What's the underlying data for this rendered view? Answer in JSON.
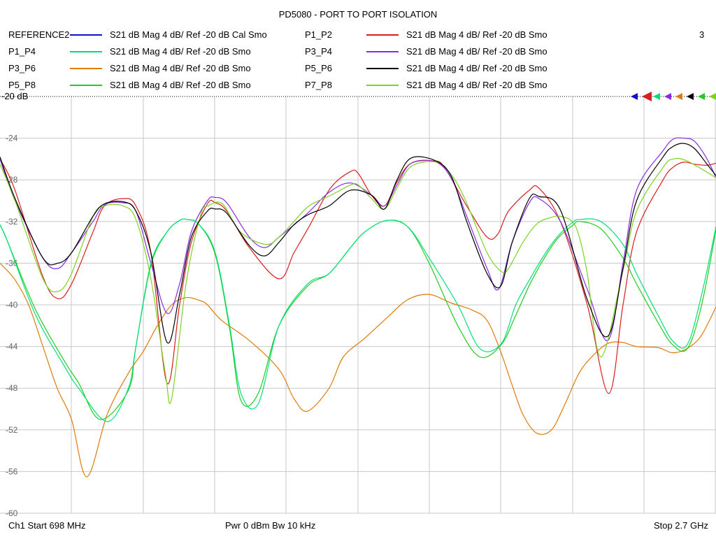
{
  "chart_data": {
    "type": "line",
    "title": "PD5080 - PORT TO PORT ISOLATION",
    "x_start_label": "698 MHz",
    "x_stop_label": "2.7 GHz",
    "xlim": [
      698,
      2700
    ],
    "ylim": [
      -60,
      -20
    ],
    "y_ticks": [
      -24,
      -28,
      -32,
      -36,
      -40,
      -44,
      -48,
      -52,
      -56,
      -60
    ],
    "reference_label": "-20 dB",
    "grid": true,
    "legend_position": "top",
    "series": [
      {
        "name": "REFERENCE2",
        "description": "S21  dB Mag  4 dB/ Ref -20 dB  Cal Smo",
        "color": "#1010c8",
        "x": [],
        "y": []
      },
      {
        "name": "P1_P2",
        "description": "S21  dB Mag  4 dB/ Ref -20 dB  Smo",
        "color": "#d81e1e",
        "x": [
          698,
          740,
          818,
          860,
          898,
          958,
          990,
          1042,
          1078,
          1120,
          1165,
          1200,
          1233,
          1278,
          1300,
          1332,
          1395,
          1478,
          1520,
          1562,
          1622,
          1678,
          1700,
          1737,
          1773,
          1808,
          1848,
          1918,
          1940,
          1962,
          2003,
          2060,
          2090,
          2120,
          2178,
          2205,
          2265,
          2340,
          2400,
          2440,
          2478,
          2552,
          2580,
          2610,
          2640,
          2675,
          2700
        ],
        "y": [
          -26,
          -29,
          -37.3,
          -39.4,
          -38,
          -33,
          -30.5,
          -29.8,
          -30.5,
          -35,
          -47.5,
          -40,
          -34,
          -30.3,
          -30.2,
          -31,
          -34.5,
          -37.5,
          -35,
          -32.5,
          -28.8,
          -27.2,
          -27.4,
          -29.5,
          -30.5,
          -28.2,
          -26.4,
          -26.2,
          -26.8,
          -28,
          -30.5,
          -33.5,
          -33.2,
          -31,
          -29,
          -28.8,
          -32,
          -40,
          -48.5,
          -40,
          -33,
          -28,
          -26.8,
          -26.3,
          -26.5,
          -26.6,
          -26.4
        ]
      },
      {
        "name": "P1_P4",
        "description": "S21  dB Mag  4 dB/ Ref -20 dB  Smo",
        "color": "#00e07a",
        "x": [
          698,
          720,
          798,
          880,
          918,
          998,
          1057,
          1078,
          1120,
          1165,
          1200,
          1220,
          1255,
          1300,
          1340,
          1372,
          1420,
          1478,
          1558,
          1618,
          1678,
          1718,
          1778,
          1838,
          1898,
          1978,
          2040,
          2100,
          2140,
          2180,
          2220,
          2258,
          2298,
          2320,
          2378,
          2440,
          2478,
          2538,
          2580,
          2620,
          2660,
          2700
        ],
        "y": [
          -32.3,
          -34,
          -41,
          -46,
          -48,
          -51.2,
          -48,
          -44,
          -36,
          -33,
          -31.9,
          -31.8,
          -32.3,
          -35,
          -42,
          -48.5,
          -49.5,
          -42,
          -38,
          -37,
          -34.5,
          -33,
          -31.9,
          -32.5,
          -35.5,
          -40,
          -44.2,
          -43.7,
          -40,
          -37.5,
          -35.2,
          -33.4,
          -32.1,
          -31.8,
          -32,
          -34.2,
          -37,
          -41,
          -43.5,
          -43.8,
          -39,
          -32.5
        ]
      },
      {
        "name": "P3_P4",
        "description": "S21  dB Mag  4 dB/ Ref -20 dB  Smo",
        "color": "#8a2be2",
        "x": [
          698,
          740,
          818,
          860,
          898,
          958,
          990,
          1042,
          1078,
          1120,
          1165,
          1200,
          1233,
          1278,
          1300,
          1332,
          1395,
          1438,
          1478,
          1558,
          1618,
          1678,
          1738,
          1773,
          1808,
          1848,
          1918,
          1962,
          2003,
          2060,
          2092,
          2130,
          2178,
          2205,
          2265,
          2340,
          2398,
          2440,
          2478,
          2552,
          2580,
          2610,
          2640,
          2675,
          2700
        ],
        "y": [
          -26,
          -30,
          -35.5,
          -36.5,
          -35,
          -32,
          -30.4,
          -30.2,
          -31,
          -36,
          -40.8,
          -38,
          -33,
          -30,
          -29.7,
          -30.2,
          -33.5,
          -34.5,
          -33.5,
          -31.2,
          -29.2,
          -28.3,
          -29.5,
          -30.5,
          -28.5,
          -26.4,
          -26.3,
          -28,
          -31.5,
          -36.5,
          -38.5,
          -34,
          -30.2,
          -29.8,
          -32,
          -38.5,
          -43.4,
          -36,
          -29,
          -25.2,
          -24.1,
          -24,
          -24.3,
          -26,
          -27.8
        ]
      },
      {
        "name": "P3_P6",
        "description": "S21  dB Mag  4 dB/ Ref -20 dB  Smo",
        "color": "#e07b0a",
        "x": [
          698,
          738,
          778,
          818,
          858,
          898,
          941,
          998,
          1058,
          1098,
          1138,
          1178,
          1218,
          1258,
          1278,
          1318,
          1398,
          1478,
          1520,
          1558,
          1618,
          1658,
          1718,
          1778,
          1838,
          1898,
          1958,
          2018,
          2060,
          2098,
          2128,
          2160,
          2198,
          2240,
          2278,
          2318,
          2358,
          2398,
          2438,
          2478,
          2538,
          2578,
          2618,
          2658,
          2700
        ],
        "y": [
          -36,
          -37.5,
          -40,
          -44,
          -48,
          -51,
          -56.5,
          -50.5,
          -46.5,
          -44.5,
          -42,
          -40,
          -39.3,
          -39.6,
          -40,
          -41.5,
          -43.5,
          -46.2,
          -49,
          -50.2,
          -48,
          -45,
          -43.2,
          -41.3,
          -39.5,
          -39,
          -39.8,
          -40.5,
          -41.5,
          -44.5,
          -47.5,
          -50.5,
          -52.3,
          -52,
          -49.5,
          -46.5,
          -44.8,
          -43.7,
          -43.6,
          -44,
          -44.1,
          -44.6,
          -44.2,
          -43,
          -40.2
        ]
      },
      {
        "name": "P5_P6",
        "description": "S21  dB Mag  4 dB/ Ref -20 dB  Smo",
        "color": "#000000",
        "x": [
          698,
          740,
          818,
          860,
          898,
          958,
          990,
          1042,
          1078,
          1120,
          1165,
          1200,
          1233,
          1278,
          1300,
          1332,
          1395,
          1438,
          1478,
          1520,
          1562,
          1618,
          1678,
          1738,
          1773,
          1808,
          1848,
          1918,
          1962,
          2003,
          2060,
          2098,
          2130,
          2178,
          2205,
          2265,
          2340,
          2398,
          2440,
          2478,
          2552,
          2580,
          2610,
          2640,
          2675,
          2700
        ],
        "y": [
          -25.8,
          -29.8,
          -35.5,
          -36,
          -35,
          -31.5,
          -30.3,
          -30.1,
          -31,
          -35,
          -43.6,
          -39,
          -33.5,
          -31,
          -30.8,
          -31.2,
          -34.3,
          -35.3,
          -34,
          -32.3,
          -31.3,
          -30.5,
          -29,
          -29.5,
          -30.8,
          -28,
          -25.9,
          -26.2,
          -27.8,
          -32,
          -37,
          -38.2,
          -34,
          -29.8,
          -29.6,
          -30.9,
          -39.5,
          -43,
          -36.5,
          -30,
          -25.8,
          -24.8,
          -24.5,
          -25,
          -26.5,
          -27.6
        ]
      },
      {
        "name": "P5_P8",
        "description": "S21  dB Mag  4 dB/ Ref -20 dB  Smo",
        "color": "#22cc22",
        "x": [
          698,
          720,
          798,
          880,
          918,
          978,
          1057,
          1078,
          1120,
          1165,
          1200,
          1220,
          1255,
          1300,
          1340,
          1372,
          1420,
          1478,
          1558,
          1618,
          1678,
          1718,
          1778,
          1838,
          1898,
          1978,
          2040,
          2100,
          2140,
          2180,
          2220,
          2258,
          2298,
          2320,
          2378,
          2440,
          2478,
          2538,
          2578,
          2620,
          2660,
          2700
        ],
        "y": [
          -32.3,
          -34,
          -40.5,
          -45.5,
          -47.5,
          -51,
          -48.2,
          -44,
          -36.2,
          -33,
          -31.9,
          -31.8,
          -32.3,
          -35.2,
          -42.3,
          -49.2,
          -48.5,
          -42,
          -38.2,
          -37,
          -34.5,
          -33,
          -31.9,
          -32.5,
          -36,
          -42,
          -45,
          -43.8,
          -41,
          -38,
          -35.5,
          -33.6,
          -32.4,
          -32,
          -32.7,
          -35.5,
          -38,
          -41.7,
          -43.8,
          -44.2,
          -40,
          -32.8
        ]
      },
      {
        "name": "P7_P8",
        "description": "S21  dB Mag  4 dB/ Ref -20 dB  Smo",
        "color": "#7ed321",
        "x": [
          698,
          740,
          818,
          860,
          898,
          958,
          990,
          1042,
          1078,
          1120,
          1160,
          1178,
          1218,
          1258,
          1280,
          1320,
          1370,
          1440,
          1478,
          1520,
          1562,
          1622,
          1678,
          1700,
          1737,
          1773,
          1808,
          1848,
          1918,
          1960,
          2000,
          2060,
          2100,
          2120,
          2160,
          2200,
          2240,
          2265,
          2298,
          2318,
          2340,
          2378,
          2438,
          2478,
          2552,
          2580,
          2620,
          2700
        ],
        "y": [
          -26.5,
          -30,
          -37.5,
          -38.7,
          -37,
          -31.5,
          -30.5,
          -30.5,
          -31.8,
          -37.5,
          -46.5,
          -49,
          -38,
          -31.5,
          -30.5,
          -30.3,
          -33,
          -34.2,
          -33.5,
          -32,
          -30.5,
          -29.5,
          -28.5,
          -28.5,
          -29.8,
          -30.8,
          -28.8,
          -26.7,
          -26.3,
          -27.5,
          -30,
          -35,
          -36.8,
          -36.5,
          -34,
          -32.2,
          -31.6,
          -31.5,
          -32,
          -33.5,
          -37,
          -45,
          -37,
          -31,
          -26.8,
          -26,
          -26.2,
          -27.8
        ]
      }
    ]
  },
  "footer": {
    "channel_start": "Ch1  Start  698 MHz",
    "power_bw": "Pwr  0 dBm  Bw  10 kHz",
    "stop": "Stop  2.7 GHz"
  },
  "channel_number": "3"
}
